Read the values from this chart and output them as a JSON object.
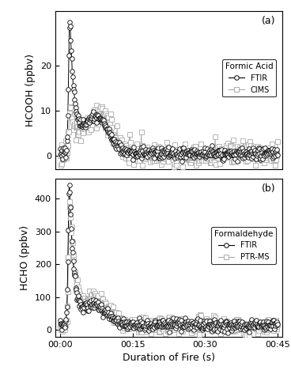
{
  "title_a": "(a)",
  "title_b": "(b)",
  "xlabel": "Duration of Fire (s)",
  "ylabel_a": "HCOOH (ppbv)",
  "ylabel_b": "HCHO (ppbv)",
  "legend_a_title": "Formic Acid",
  "legend_a": [
    "FTIR",
    "CIMS"
  ],
  "legend_b_title": "Formaldehyde",
  "legend_b": [
    "FTIR",
    "PTR-MS"
  ],
  "ylim_a": [
    -3,
    32
  ],
  "ylim_b": [
    -20,
    460
  ],
  "yticks_a": [
    0,
    10,
    20
  ],
  "yticks_b": [
    0,
    100,
    200,
    300,
    400
  ],
  "xticks_seconds": [
    0,
    900,
    1800,
    2700
  ],
  "xtick_labels": [
    "00:00",
    "00:15",
    "00:30",
    "00:45"
  ],
  "xlim": [
    -60,
    2760
  ],
  "color_ftir": "#000000",
  "color_cims": "#aaaaaa",
  "color_ptrms": "#aaaaaa",
  "marker_ftir": "o",
  "marker_cims": "s",
  "marker_ptrms": "s",
  "markersize_ftir": 4,
  "markersize_cims": 5,
  "linewidth": 0.7
}
